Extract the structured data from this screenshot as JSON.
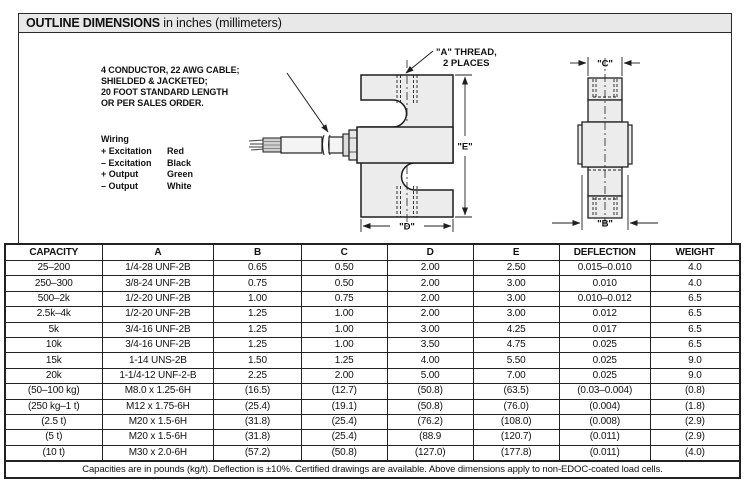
{
  "title": {
    "main": "OUTLINE DIMENSIONS",
    "suffix": " in inches (millimeters)"
  },
  "diagram": {
    "cable_note_lines": [
      "4 CONDUCTOR, 22 AWG CABLE;",
      "SHIELDED & JACKETED;",
      "20 FOOT STANDARD LENGTH",
      "OR PER SALES ORDER."
    ],
    "wiring": {
      "heading": "Wiring",
      "rows": [
        {
          "signal": "+ Excitation",
          "color": "Red"
        },
        {
          "signal": "– Excitation",
          "color": "Black"
        },
        {
          "signal": "+ Output",
          "color": "Green"
        },
        {
          "signal": "– Output",
          "color": "White"
        }
      ]
    },
    "labels": {
      "a_thread_line1": "\"A\" THREAD,",
      "a_thread_line2": "2 PLACES",
      "dim_e": "\"E\"",
      "dim_d": "\"D\"",
      "dim_c": "\"C\"",
      "dim_b": "\"B\""
    }
  },
  "table": {
    "headers": [
      "CAPACITY",
      "A",
      "B",
      "C",
      "D",
      "E",
      "DEFLECTION",
      "WEIGHT"
    ],
    "rows": [
      [
        "25–200",
        "1/4-28 UNF-2B",
        "0.65",
        "0.50",
        "2.00",
        "2.50",
        "0.015–0.010",
        "4.0"
      ],
      [
        "250–300",
        "3/8-24 UNF-2B",
        "0.75",
        "0.50",
        "2.00",
        "3.00",
        "0.010",
        "4.0"
      ],
      [
        "500–2k",
        "1/2-20 UNF-2B",
        "1.00",
        "0.75",
        "2.00",
        "3.00",
        "0.010–0.012",
        "6.5"
      ],
      [
        "2.5k–4k",
        "1/2-20 UNF-2B",
        "1.25",
        "1.00",
        "2.00",
        "3.00",
        "0.012",
        "6.5"
      ],
      [
        "5k",
        "3/4-16 UNF-2B",
        "1.25",
        "1.00",
        "3.00",
        "4.25",
        "0.017",
        "6.5"
      ],
      [
        "10k",
        "3/4-16 UNF-2B",
        "1.25",
        "1.00",
        "3.50",
        "4.75",
        "0.025",
        "6.5"
      ],
      [
        "15k",
        "1-14 UNS-2B",
        "1.50",
        "1.25",
        "4.00",
        "5.50",
        "0.025",
        "9.0"
      ],
      [
        "20k",
        "1-1/4-12 UNF-2-B",
        "2.25",
        "2.00",
        "5.00",
        "7.00",
        "0.025",
        "9.0"
      ],
      [
        "(50–100 kg)",
        "M8.0 x 1.25-6H",
        "(16.5)",
        "(12.7)",
        "(50.8)",
        "(63.5)",
        "(0.03–0.004)",
        "(0.8)"
      ],
      [
        "(250 kg–1 t)",
        "M12 x 1.75-6H",
        "(25.4)",
        "(19.1)",
        "(50.8)",
        "(76.0)",
        "(0.004)",
        "(1.8)"
      ],
      [
        "(2.5 t)",
        "M20 x 1.5-6H",
        "(31.8)",
        "(25.4)",
        "(76.2)",
        "(108.0)",
        "(0.008)",
        "(2.9)"
      ],
      [
        "(5 t)",
        "M20 x 1.5-6H",
        "(31.8)",
        "(25.4)",
        "(88.9",
        "(120.7)",
        "(0.011)",
        "(2.9)"
      ],
      [
        "(10 t)",
        "M30 x 2.0-6H",
        "(57.2)",
        "(50.8)",
        "(127.0)",
        "(177.8)",
        "(0.011)",
        "(4.0)"
      ]
    ],
    "footnote": "Capacities are in pounds (kg/t). Deflection is ±10%. Certified drawings are available. Above dimensions apply to non-EDOC-coated load cells."
  },
  "colors": {
    "title_bar_bg": "#e8e8e8",
    "drawing_fill": "#ececec",
    "line": "#1f1f1f"
  }
}
